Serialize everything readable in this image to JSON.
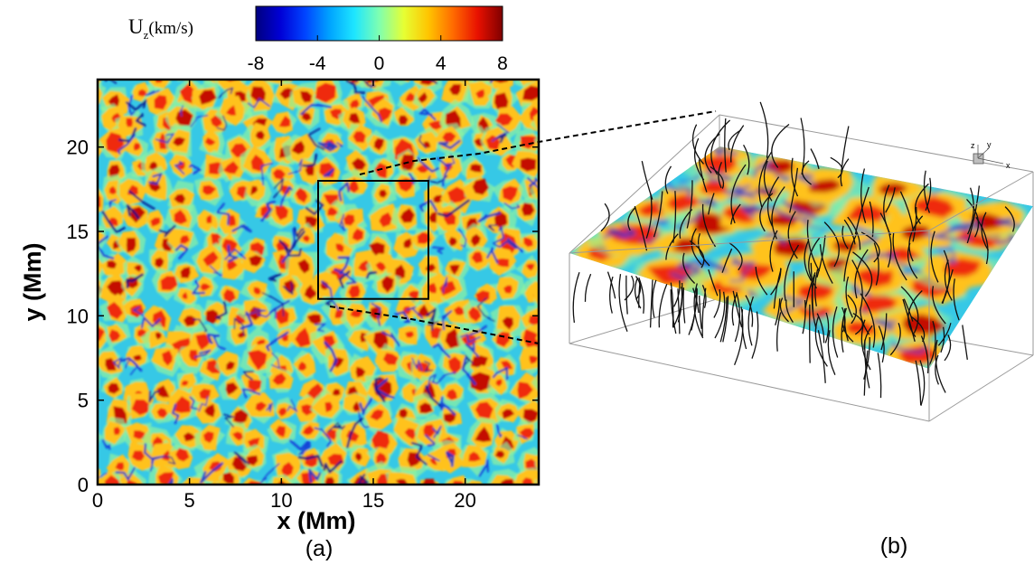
{
  "colorbar": {
    "title_main": "U",
    "title_sub": "z",
    "title_unit": "(km/s)",
    "ticks": [
      "-8",
      "-4",
      "0",
      "4",
      "8"
    ],
    "tick_values": [
      -8,
      -4,
      0,
      4,
      8
    ],
    "range": [
      -8,
      8
    ],
    "colors": [
      "#00007f",
      "#0000d6",
      "#0044ff",
      "#00a4ff",
      "#1ee6ff",
      "#7fffb0",
      "#e6ff33",
      "#ffc400",
      "#ff6a00",
      "#e81000",
      "#7f0000"
    ]
  },
  "panel_a": {
    "label": "(a)",
    "xlabel": "x (Mm)",
    "ylabel": "y (Mm)",
    "xlim": [
      0,
      24
    ],
    "ylim": [
      0,
      24
    ],
    "x_ticks": [
      "0",
      "5",
      "10",
      "15",
      "20"
    ],
    "y_ticks": [
      "0",
      "5",
      "10",
      "15",
      "20"
    ],
    "tick_values": [
      0,
      5,
      10,
      15,
      20
    ],
    "zoom_box": {
      "x0": 12,
      "x1": 18,
      "y0": 11,
      "y1": 18
    }
  },
  "panel_b": {
    "label": "(b)",
    "triad": {
      "x": "x",
      "y": "y",
      "z": "z"
    }
  },
  "palette": {
    "background": "#36c8e6",
    "granule_fill": "#ffc21a",
    "granule_core": "#ef2a0c",
    "granule_hot": "#c41000",
    "lane": "#1233d6",
    "lane_dark": "#000a8a",
    "halo": "#8ff2a0"
  }
}
